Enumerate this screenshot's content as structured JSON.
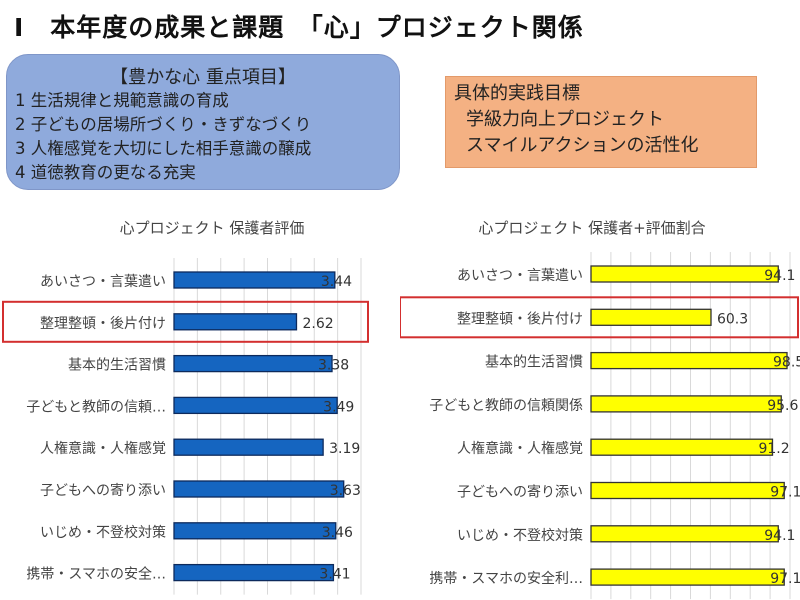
{
  "header": {
    "title": "Ⅰ　本年度の成果と課題　「心」プロジェクト関係"
  },
  "focus_box": {
    "heading": "【豊かな心 重点項目】",
    "items": [
      "1 生活規律と規範意識の育成",
      "2 子どもの居場所づくり・きずなづくり",
      "3 人権感覚を大切にした相手意識の醸成",
      "4 道徳教育の更なる充実"
    ]
  },
  "goal_box": {
    "heading": "具体的実践目標",
    "items": [
      "学級力向上プロジェクト",
      "スマイルアクションの活性化"
    ]
  },
  "chart_data": [
    {
      "type": "bar",
      "orientation": "horizontal",
      "title": "心プロジェクト 保護者評価",
      "categories": [
        "あいさつ・言葉遣い",
        "整理整頓・後片付け",
        "基本的生活習慣",
        "子どもと教師の信頼…",
        "人権意識・人権感覚",
        "子どもへの寄り添い",
        "いじめ・不登校対策",
        "携帯・スマホの安全…"
      ],
      "values": [
        3.44,
        2.62,
        3.38,
        3.49,
        3.19,
        3.63,
        3.46,
        3.41
      ],
      "data_labels": [
        "3.44",
        "2.62",
        "3.38",
        "3.49",
        "3.19",
        "3.63",
        "3.46",
        "3.41"
      ],
      "xlim": [
        0,
        4
      ],
      "grid_step": 0.5,
      "bar_color": "#1565c0",
      "highlight_index": 1,
      "highlight_color": "#d32f2f"
    },
    {
      "type": "bar",
      "orientation": "horizontal",
      "title": "心プロジェクト 保護者+評価割合",
      "categories": [
        "あいさつ・言葉遣い",
        "整理整頓・後片付け",
        "基本的生活習慣",
        "子どもと教師の信頼関係",
        "人権意識・人権感覚",
        "子どもへの寄り添い",
        "いじめ・不登校対策",
        "携帯・スマホの安全利…"
      ],
      "values": [
        94.1,
        60.3,
        98.5,
        95.6,
        91.2,
        97.1,
        94.1,
        97.1
      ],
      "data_labels": [
        "94.1",
        "60.3",
        "98.5",
        "95.6",
        "91.2",
        "97.1",
        "94.1",
        "97.1"
      ],
      "xlim": [
        0,
        100
      ],
      "grid_step": 10,
      "bar_color": "#ffff00",
      "highlight_index": 1,
      "highlight_color": "#d32f2f"
    }
  ]
}
